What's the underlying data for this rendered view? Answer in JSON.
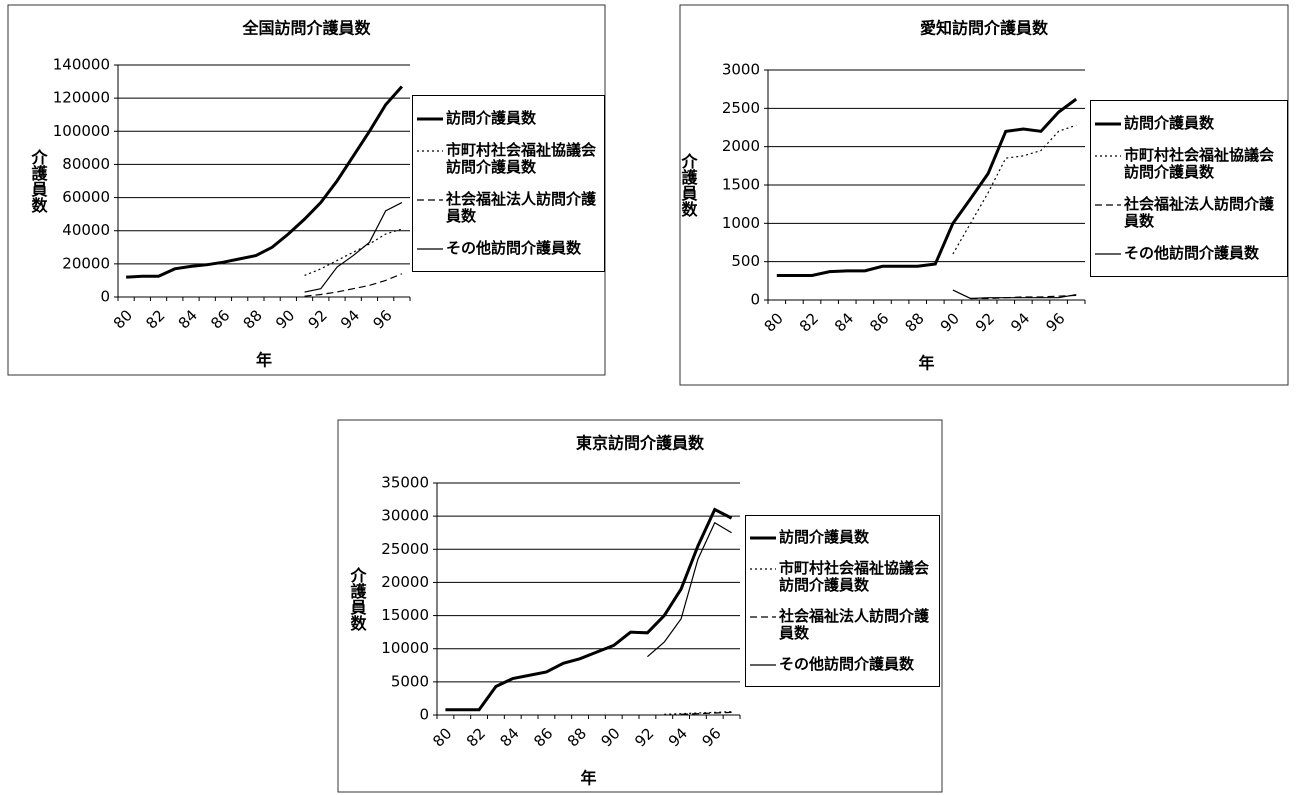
{
  "chart_data": [
    {
      "type": "line",
      "title": "全国訪問介護員数",
      "x_label": "年",
      "y_label": "介護員数",
      "categories": [
        "80",
        null,
        "82",
        null,
        "84",
        null,
        "86",
        null,
        "88",
        null,
        "90",
        null,
        "92",
        null,
        "94",
        null,
        "96",
        null
      ],
      "ylim": [
        0,
        140000
      ],
      "yticks": [
        0,
        20000,
        40000,
        60000,
        80000,
        100000,
        120000,
        140000
      ],
      "grid": true,
      "series": [
        {
          "name": "訪問介護員数",
          "color": "#000000",
          "line_style": "solid",
          "line_width": 3,
          "values": [
            12000,
            12500,
            12500,
            17000,
            18500,
            19500,
            21000,
            23000,
            25000,
            30000,
            38000,
            47000,
            57000,
            70000,
            85000,
            100000,
            116000,
            127000
          ]
        },
        {
          "name": "市町村社会福祉協議会訪問介護員数",
          "color": "#000000",
          "line_style": "dotted",
          "line_width": 1.2,
          "values": [
            null,
            null,
            null,
            null,
            null,
            null,
            null,
            null,
            null,
            null,
            null,
            13000,
            17000,
            22000,
            27000,
            32000,
            38000,
            41000
          ]
        },
        {
          "name": "社会福祉法人訪問介護員数",
          "color": "#000000",
          "line_style": "dashed",
          "line_width": 1.2,
          "values": [
            null,
            null,
            null,
            null,
            null,
            null,
            null,
            null,
            null,
            null,
            null,
            500,
            1500,
            3000,
            5000,
            7000,
            10000,
            14000
          ]
        },
        {
          "name": "その他訪問介護員数",
          "color": "#000000",
          "line_style": "solid",
          "line_width": 1.2,
          "values": [
            null,
            null,
            null,
            null,
            null,
            null,
            null,
            null,
            null,
            null,
            null,
            3000,
            5000,
            18000,
            25000,
            33000,
            52000,
            57000
          ]
        }
      ]
    },
    {
      "type": "line",
      "title": "愛知訪問介護員数",
      "x_label": "年",
      "y_label": "介護員数",
      "categories": [
        "80",
        null,
        "82",
        null,
        "84",
        null,
        "86",
        null,
        "88",
        null,
        "90",
        null,
        "92",
        null,
        "94",
        null,
        "96",
        null
      ],
      "ylim": [
        0,
        3000
      ],
      "yticks": [
        0,
        500,
        1000,
        1500,
        2000,
        2500,
        3000
      ],
      "grid": true,
      "series": [
        {
          "name": "訪問介護員数",
          "color": "#000000",
          "line_style": "solid",
          "line_width": 3,
          "values": [
            320,
            320,
            320,
            370,
            380,
            380,
            440,
            440,
            440,
            470,
            1000,
            1320,
            1650,
            2200,
            2230,
            2200,
            2450,
            2620
          ]
        },
        {
          "name": "市町村社会福祉協議会訪問介護員数",
          "color": "#000000",
          "line_style": "dotted",
          "line_width": 1.2,
          "values": [
            null,
            null,
            null,
            null,
            null,
            null,
            null,
            null,
            null,
            null,
            600,
            1000,
            1400,
            1850,
            1880,
            1950,
            2200,
            2280
          ]
        },
        {
          "name": "社会福祉法人訪問介護員数",
          "color": "#000000",
          "line_style": "dashed",
          "line_width": 1.2,
          "values": [
            null,
            null,
            null,
            null,
            null,
            null,
            null,
            null,
            null,
            null,
            null,
            20,
            20,
            30,
            40,
            40,
            50,
            60
          ]
        },
        {
          "name": "その他訪問介護員数",
          "color": "#000000",
          "line_style": "solid",
          "line_width": 1.2,
          "values": [
            null,
            null,
            null,
            null,
            null,
            null,
            null,
            null,
            null,
            null,
            130,
            20,
            30,
            30,
            30,
            30,
            30,
            70
          ]
        }
      ]
    },
    {
      "type": "line",
      "title": "東京訪問介護員数",
      "x_label": "年",
      "y_label": "介護員数",
      "categories": [
        "80",
        null,
        "82",
        null,
        "84",
        null,
        "86",
        null,
        "88",
        null,
        "90",
        null,
        "92",
        null,
        "94",
        null,
        "96",
        null
      ],
      "ylim": [
        0,
        35000
      ],
      "yticks": [
        0,
        5000,
        10000,
        15000,
        20000,
        25000,
        30000,
        35000
      ],
      "grid": true,
      "series": [
        {
          "name": "訪問介護員数",
          "color": "#000000",
          "line_style": "solid",
          "line_width": 3,
          "values": [
            800,
            800,
            800,
            4300,
            5500,
            6000,
            6500,
            7800,
            8500,
            9500,
            10500,
            12500,
            12400,
            15000,
            19000,
            25500,
            31000,
            29700
          ]
        },
        {
          "name": "市町村社会福祉協議会訪問介護員数",
          "color": "#000000",
          "line_style": "dotted",
          "line_width": 1.2,
          "values": [
            null,
            null,
            null,
            null,
            null,
            null,
            null,
            null,
            null,
            null,
            null,
            null,
            null,
            100,
            200,
            300,
            400,
            500
          ]
        },
        {
          "name": "社会福祉法人訪問介護員数",
          "color": "#000000",
          "line_style": "dashed",
          "line_width": 1.2,
          "values": [
            null,
            null,
            null,
            null,
            null,
            null,
            null,
            null,
            null,
            null,
            null,
            null,
            null,
            null,
            100,
            200,
            300,
            400
          ]
        },
        {
          "name": "その他訪問介護員数",
          "color": "#000000",
          "line_style": "solid",
          "line_width": 1.2,
          "values": [
            null,
            null,
            null,
            null,
            null,
            null,
            null,
            null,
            null,
            null,
            null,
            null,
            8800,
            11000,
            14500,
            23500,
            29000,
            27500
          ]
        }
      ]
    }
  ]
}
